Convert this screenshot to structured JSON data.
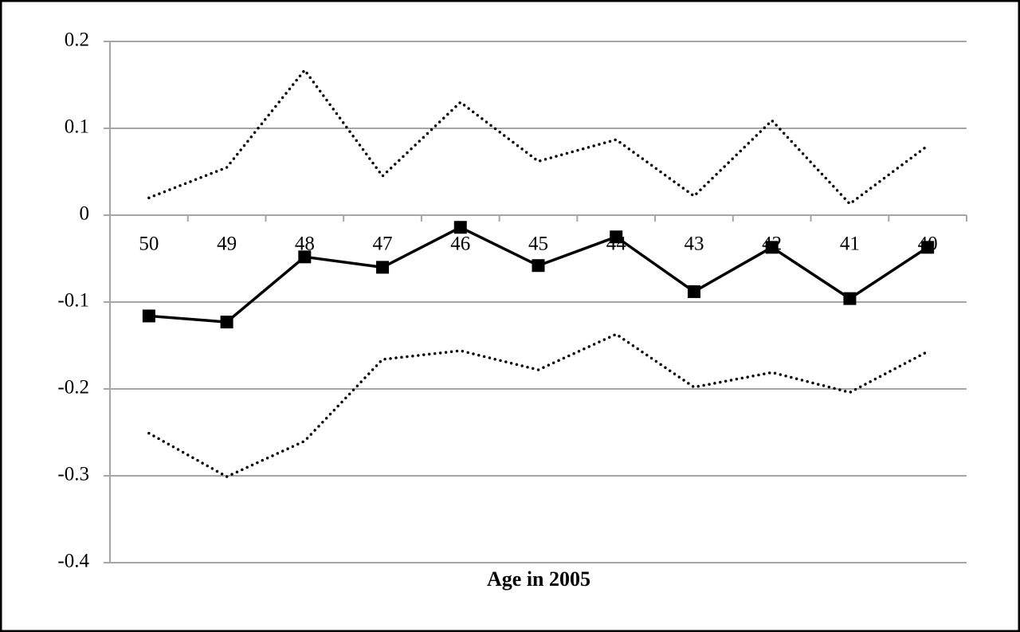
{
  "chart_data": {
    "type": "line",
    "x_label": "Age in 2005",
    "categories": [
      "50",
      "49",
      "48",
      "47",
      "46",
      "45",
      "44",
      "43",
      "42",
      "41",
      "40"
    ],
    "series": [
      {
        "color": "#000000",
        "line_style": "dotted",
        "marker": "none",
        "values": [
          0.02,
          0.055,
          0.167,
          0.045,
          0.13,
          0.062,
          0.087,
          0.022,
          0.109,
          0.013,
          0.08
        ]
      },
      {
        "color": "#000000",
        "line_style": "solid",
        "marker": "square",
        "values": [
          -0.116,
          -0.123,
          -0.048,
          -0.06,
          -0.014,
          -0.058,
          -0.025,
          -0.088,
          -0.037,
          -0.096,
          -0.037
        ]
      },
      {
        "color": "#000000",
        "line_style": "dotted",
        "marker": "none",
        "values": [
          -0.251,
          -0.301,
          -0.26,
          -0.166,
          -0.156,
          -0.178,
          -0.137,
          -0.198,
          -0.181,
          -0.204,
          -0.157
        ]
      }
    ],
    "ylim": [
      -0.4,
      0.2
    ],
    "yticks": [
      -0.4,
      -0.3,
      -0.2,
      -0.1,
      0,
      0.1,
      0.2
    ],
    "grid": true
  }
}
